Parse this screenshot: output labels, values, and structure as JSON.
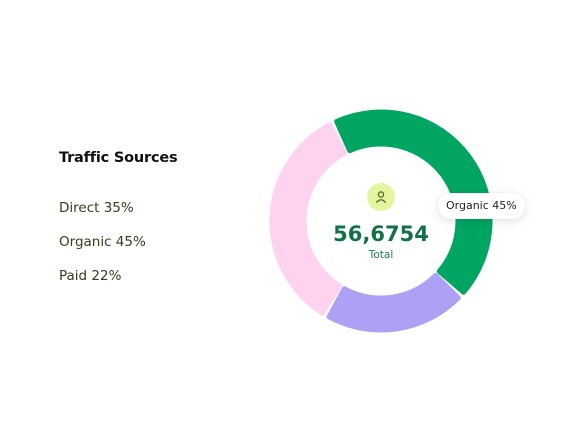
{
  "header": {
    "title": "Traffic Sources"
  },
  "legend": [
    {
      "label": "Direct 35%"
    },
    {
      "label": "Organic 45%"
    },
    {
      "label": "Paid 22%"
    }
  ],
  "center": {
    "total": "56,6754",
    "label": "Total",
    "icon": "user-icon"
  },
  "tooltip": {
    "text": "Organic 45%"
  },
  "colors": {
    "organic": "#00a562",
    "paid": "#ada1f5",
    "direct": "#fdd3f0",
    "icon_bg": "#e4f5a0",
    "icon_stroke": "#3f5f12",
    "total_text": "#137048"
  },
  "chart_data": {
    "type": "pie",
    "title": "Traffic Sources",
    "donut": true,
    "categories": [
      "Organic",
      "Paid",
      "Direct"
    ],
    "values": [
      45,
      22,
      35
    ],
    "center_value": "56,6754",
    "center_label": "Total",
    "highlighted": "Organic"
  }
}
